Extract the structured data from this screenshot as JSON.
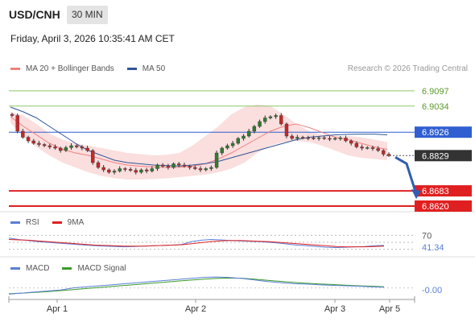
{
  "header": {
    "symbol": "USD/CNH",
    "interval": "30 MIN",
    "datetime": "Friday, April 3, 2026 10:35:41 AM CET",
    "credit": "Research © 2026 Trading Central"
  },
  "legends": {
    "main": [
      {
        "label": "MA 20 + Bollinger Bands",
        "color": "#f08080"
      },
      {
        "label": "MA 50",
        "color": "#2f5597"
      }
    ],
    "rsi": [
      {
        "label": "RSI",
        "color": "#5b7fd6"
      },
      {
        "label": "9MA",
        "color": "#e02020"
      }
    ],
    "macd": [
      {
        "label": "MACD",
        "color": "#5b7fd6"
      },
      {
        "label": "MACD Signal",
        "color": "#3a9a2a"
      }
    ]
  },
  "chart_data": {
    "type": "candlestick",
    "x_labels": [
      "Apr 1",
      "Apr 2",
      "Apr 3",
      "Apr 5"
    ],
    "price_range": [
      6.86,
      6.914
    ],
    "levels": [
      {
        "value": 6.9097,
        "label": "6.9097",
        "kind": "resistance",
        "color": "#8dc86b"
      },
      {
        "value": 6.9034,
        "label": "6.9034",
        "kind": "resistance",
        "color": "#8dc86b"
      },
      {
        "value": 6.8926,
        "label": "6.8926",
        "kind": "pivot",
        "color": "#2f5fd0"
      },
      {
        "value": 6.8829,
        "label": "6.8829",
        "kind": "last",
        "color": "#333333"
      },
      {
        "value": 6.8683,
        "label": "6.8683",
        "kind": "support",
        "color": "#e02020"
      },
      {
        "value": 6.862,
        "label": "6.8620",
        "kind": "support",
        "color": "#e02020"
      }
    ],
    "closes": [
      6.8995,
      6.893,
      6.8905,
      6.889,
      6.888,
      6.8875,
      6.887,
      6.8865,
      6.886,
      6.885,
      6.8862,
      6.887,
      6.8865,
      6.886,
      6.885,
      6.88,
      6.878,
      6.877,
      6.876,
      6.8765,
      6.8775,
      6.8772,
      6.8768,
      6.876,
      6.877,
      6.8765,
      6.8775,
      6.879,
      6.8785,
      6.878,
      6.8795,
      6.879,
      6.8785,
      6.878,
      6.8775,
      6.877,
      6.8775,
      6.878,
      6.884,
      6.886,
      6.887,
      6.888,
      6.89,
      6.891,
      6.893,
      6.895,
      6.897,
      6.8985,
      6.899,
      6.8995,
      6.896,
      6.891,
      6.89,
      6.8905,
      6.8903,
      6.8902,
      6.89,
      6.8903,
      6.89,
      6.8898,
      6.89,
      6.8902,
      6.889,
      6.888,
      6.8865,
      6.886,
      6.8862,
      6.8858,
      6.885,
      6.8835,
      6.8829
    ],
    "ma20": [
      6.899,
      6.895,
      6.8915,
      6.888,
      6.8855,
      6.884,
      6.883,
      6.8815,
      6.88,
      6.879,
      6.8785,
      6.8782,
      6.878,
      6.8781,
      6.8785,
      6.8795,
      6.8815,
      6.884,
      6.887,
      6.89,
      6.893,
      6.895,
      6.896,
      6.8945,
      6.8925,
      6.8905,
      6.8895,
      6.888,
      6.8865,
      6.8855
    ],
    "ma50": [
      6.903,
      6.901,
      6.8985,
      6.895,
      6.8915,
      6.888,
      6.885,
      6.883,
      6.881,
      6.88,
      6.8795,
      6.879,
      6.8788,
      6.8786,
      6.879,
      6.8796,
      6.8805,
      6.882,
      6.8835,
      6.885,
      6.8865,
      6.888,
      6.8895,
      6.8905,
      6.891,
      6.8915,
      6.8917,
      6.8918,
      6.8918,
      6.8915
    ],
    "bb_upper": [
      6.901,
      6.8995,
      6.896,
      6.892,
      6.8895,
      6.888,
      6.887,
      6.886,
      6.885,
      6.884,
      6.8835,
      6.883,
      6.8832,
      6.884,
      6.887,
      6.891,
      6.895,
      6.9,
      6.903,
      6.904,
      6.9035,
      6.9,
      6.896,
      6.893,
      6.8915,
      6.891,
      6.891,
      6.8905,
      6.8895,
      6.8885
    ],
    "bb_lower": [
      6.8965,
      6.8905,
      6.8865,
      6.883,
      6.88,
      6.878,
      6.876,
      6.8745,
      6.8735,
      6.873,
      6.873,
      6.8732,
      6.8735,
      6.874,
      6.8745,
      6.875,
      6.876,
      6.8775,
      6.88,
      6.884,
      6.887,
      6.8885,
      6.889,
      6.8885,
      6.887,
      6.885,
      6.883,
      6.882,
      6.8815,
      6.881
    ],
    "rsi": {
      "ticks": [
        "70",
        "41.34"
      ],
      "values": [
        62,
        58,
        55,
        52,
        50,
        48,
        46,
        44,
        42,
        40,
        39,
        38,
        37,
        38,
        39,
        40,
        41,
        42,
        44,
        52,
        56,
        58,
        57,
        55,
        54,
        53,
        52,
        50,
        48,
        45,
        42,
        40,
        38,
        36,
        35,
        36,
        37,
        38,
        40,
        41
      ],
      "ma9": [
        58,
        57,
        56,
        54,
        52,
        50,
        48,
        46,
        44,
        42,
        41,
        40,
        39,
        39,
        39,
        40,
        41,
        42,
        43,
        46,
        49,
        52,
        54,
        55,
        55,
        54,
        53,
        52,
        50,
        48,
        46,
        44,
        42,
        40,
        38,
        37,
        37,
        37,
        38,
        39
      ]
    },
    "macd": {
      "ticks": [
        "-0.00"
      ],
      "values": [
        -3,
        -2.5,
        -2,
        -1.5,
        -1,
        0,
        0.5,
        1,
        1.5,
        2,
        2.5,
        3,
        3.5,
        4,
        4.5,
        5,
        5.2,
        5,
        4.5,
        3.8,
        3,
        2.5,
        2,
        1.8,
        1.5,
        1.2,
        1,
        0.8,
        0.5,
        0.3
      ],
      "signal": [
        -2.8,
        -2.5,
        -2.2,
        -1.8,
        -1.3,
        -0.8,
        -0.3,
        0.2,
        0.7,
        1.2,
        1.7,
        2.2,
        2.7,
        3.2,
        3.7,
        4.1,
        4.5,
        4.7,
        4.6,
        4.2,
        3.6,
        3.1,
        2.6,
        2.2,
        1.9,
        1.6,
        1.3,
        1.0,
        0.8,
        0.5
      ]
    }
  }
}
